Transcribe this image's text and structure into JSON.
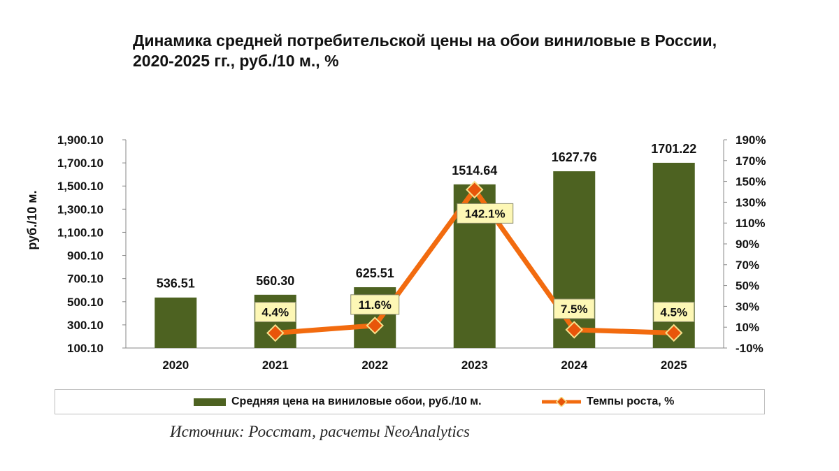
{
  "title_line1": "Динамика средней потребительской цены на обои виниловые в России,",
  "title_line2": "2020-2025 гг., руб./10 м., %",
  "source": "Источник: Росстат, расчеты NeoAnalytics",
  "chart_data": {
    "type": "bar",
    "categories": [
      "2020",
      "2021",
      "2022",
      "2023",
      "2024",
      "2025"
    ],
    "series": [
      {
        "name": "Средняя цена на виниловые обои, руб./10 м.",
        "type": "bar",
        "axis": "left",
        "values": [
          536.51,
          560.3,
          625.51,
          1514.64,
          1627.76,
          1701.22
        ],
        "labels": [
          "536.51",
          "560.30",
          "625.51",
          "1514.64",
          "1627.76",
          "1701.22"
        ],
        "color": "#4d6221"
      },
      {
        "name": "Темпы роста, %",
        "type": "line",
        "axis": "right",
        "values": [
          null,
          4.4,
          11.6,
          142.1,
          7.5,
          4.5
        ],
        "labels": [
          "",
          "4.4%",
          "11.6%",
          "142.1%",
          "7.5%",
          "4.5%"
        ],
        "color": "#f26b0f",
        "marker_color": "#e8550a"
      }
    ],
    "ylabel": "руб./10 м.",
    "ylim": [
      100.1,
      1900.1
    ],
    "yticks": [
      "1,900.10",
      "1,700.10",
      "1,500.10",
      "1,300.10",
      "1,100.10",
      "900.10",
      "700.10",
      "500.10",
      "300.10",
      "100.10"
    ],
    "y2lim": [
      -10,
      190
    ],
    "y2ticks": [
      "190%",
      "170%",
      "150%",
      "130%",
      "110%",
      "90%",
      "70%",
      "50%",
      "30%",
      "10%",
      "-10%"
    ],
    "grid": false,
    "legend": "bottom"
  }
}
